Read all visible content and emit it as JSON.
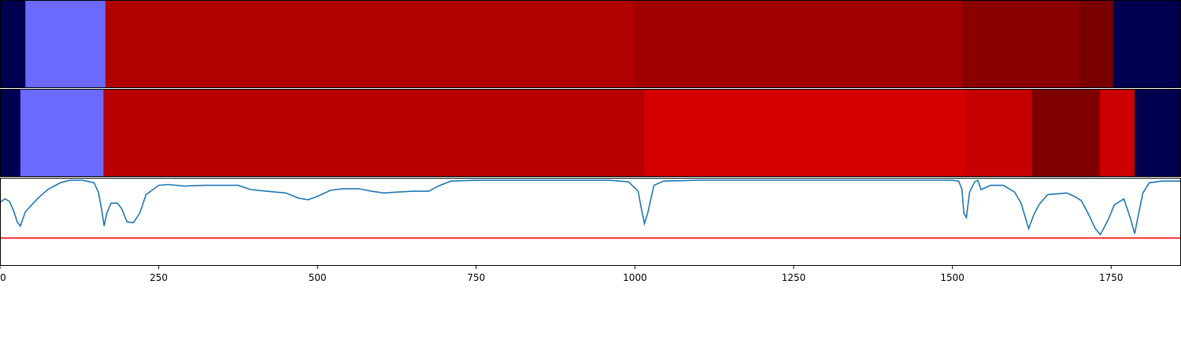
{
  "chart_data": {
    "type": "segmentation-timeline",
    "x_range": [
      0,
      1860
    ],
    "x_ticks": [
      0,
      250,
      500,
      750,
      1000,
      1250,
      1500,
      1750
    ],
    "x_tick_labels": [
      "0",
      "250",
      "500",
      "750",
      "1000",
      "1250",
      "1500",
      "1750"
    ],
    "tracks": [
      {
        "segments": [
          {
            "start": 0,
            "end": 40,
            "color": "#000050"
          },
          {
            "start": 40,
            "end": 166,
            "color": "#6a6aff"
          },
          {
            "start": 166,
            "end": 1000,
            "color": "#b00000"
          },
          {
            "start": 1000,
            "end": 1515,
            "color": "#a10000"
          },
          {
            "start": 1515,
            "end": 1700,
            "color": "#8a0000"
          },
          {
            "start": 1700,
            "end": 1753,
            "color": "#7a0000"
          },
          {
            "start": 1753,
            "end": 1860,
            "color": "#000050"
          }
        ]
      },
      {
        "segments": [
          {
            "start": 0,
            "end": 32,
            "color": "#000050"
          },
          {
            "start": 32,
            "end": 163,
            "color": "#6a6aff"
          },
          {
            "start": 163,
            "end": 1015,
            "color": "#b80000"
          },
          {
            "start": 1015,
            "end": 1522,
            "color": "#d40000"
          },
          {
            "start": 1522,
            "end": 1625,
            "color": "#c60000"
          },
          {
            "start": 1625,
            "end": 1732,
            "color": "#7e0000"
          },
          {
            "start": 1732,
            "end": 1787,
            "color": "#cc0000"
          },
          {
            "start": 1787,
            "end": 1860,
            "color": "#000050"
          }
        ]
      }
    ],
    "signal": {
      "y_range": [
        0,
        1
      ],
      "color": "#1f77b4",
      "threshold": 0.31,
      "threshold_color": "#ee0000",
      "points": [
        [
          0,
          0.73
        ],
        [
          8,
          0.77
        ],
        [
          15,
          0.74
        ],
        [
          22,
          0.62
        ],
        [
          27,
          0.5
        ],
        [
          32,
          0.45
        ],
        [
          40,
          0.62
        ],
        [
          50,
          0.7
        ],
        [
          60,
          0.78
        ],
        [
          75,
          0.88
        ],
        [
          95,
          0.96
        ],
        [
          110,
          0.99
        ],
        [
          130,
          0.99
        ],
        [
          148,
          0.96
        ],
        [
          155,
          0.85
        ],
        [
          160,
          0.65
        ],
        [
          164,
          0.45
        ],
        [
          168,
          0.6
        ],
        [
          175,
          0.72
        ],
        [
          185,
          0.72
        ],
        [
          192,
          0.65
        ],
        [
          200,
          0.5
        ],
        [
          210,
          0.49
        ],
        [
          220,
          0.6
        ],
        [
          230,
          0.82
        ],
        [
          250,
          0.93
        ],
        [
          265,
          0.94
        ],
        [
          290,
          0.92
        ],
        [
          320,
          0.93
        ],
        [
          350,
          0.93
        ],
        [
          375,
          0.93
        ],
        [
          395,
          0.88
        ],
        [
          420,
          0.86
        ],
        [
          450,
          0.84
        ],
        [
          470,
          0.78
        ],
        [
          485,
          0.76
        ],
        [
          500,
          0.8
        ],
        [
          520,
          0.87
        ],
        [
          540,
          0.89
        ],
        [
          565,
          0.89
        ],
        [
          585,
          0.86
        ],
        [
          605,
          0.84
        ],
        [
          625,
          0.85
        ],
        [
          650,
          0.86
        ],
        [
          675,
          0.86
        ],
        [
          690,
          0.92
        ],
        [
          710,
          0.98
        ],
        [
          750,
          0.99
        ],
        [
          800,
          0.99
        ],
        [
          900,
          0.99
        ],
        [
          960,
          0.99
        ],
        [
          990,
          0.97
        ],
        [
          1005,
          0.86
        ],
        [
          1010,
          0.66
        ],
        [
          1015,
          0.48
        ],
        [
          1020,
          0.6
        ],
        [
          1030,
          0.93
        ],
        [
          1045,
          0.98
        ],
        [
          1100,
          0.99
        ],
        [
          1200,
          0.99
        ],
        [
          1300,
          0.99
        ],
        [
          1400,
          0.99
        ],
        [
          1500,
          0.99
        ],
        [
          1510,
          0.98
        ],
        [
          1515,
          0.88
        ],
        [
          1518,
          0.6
        ],
        [
          1522,
          0.55
        ],
        [
          1527,
          0.85
        ],
        [
          1535,
          0.97
        ],
        [
          1540,
          0.99
        ],
        [
          1545,
          0.88
        ],
        [
          1560,
          0.93
        ],
        [
          1580,
          0.93
        ],
        [
          1598,
          0.85
        ],
        [
          1608,
          0.72
        ],
        [
          1615,
          0.55
        ],
        [
          1620,
          0.42
        ],
        [
          1628,
          0.58
        ],
        [
          1636,
          0.7
        ],
        [
          1650,
          0.82
        ],
        [
          1665,
          0.83
        ],
        [
          1680,
          0.84
        ],
        [
          1692,
          0.8
        ],
        [
          1703,
          0.75
        ],
        [
          1715,
          0.58
        ],
        [
          1725,
          0.42
        ],
        [
          1733,
          0.35
        ],
        [
          1745,
          0.52
        ],
        [
          1755,
          0.7
        ],
        [
          1770,
          0.77
        ],
        [
          1780,
          0.55
        ],
        [
          1787,
          0.36
        ],
        [
          1792,
          0.55
        ],
        [
          1800,
          0.84
        ],
        [
          1810,
          0.96
        ],
        [
          1830,
          0.98
        ],
        [
          1860,
          0.98
        ]
      ]
    }
  }
}
